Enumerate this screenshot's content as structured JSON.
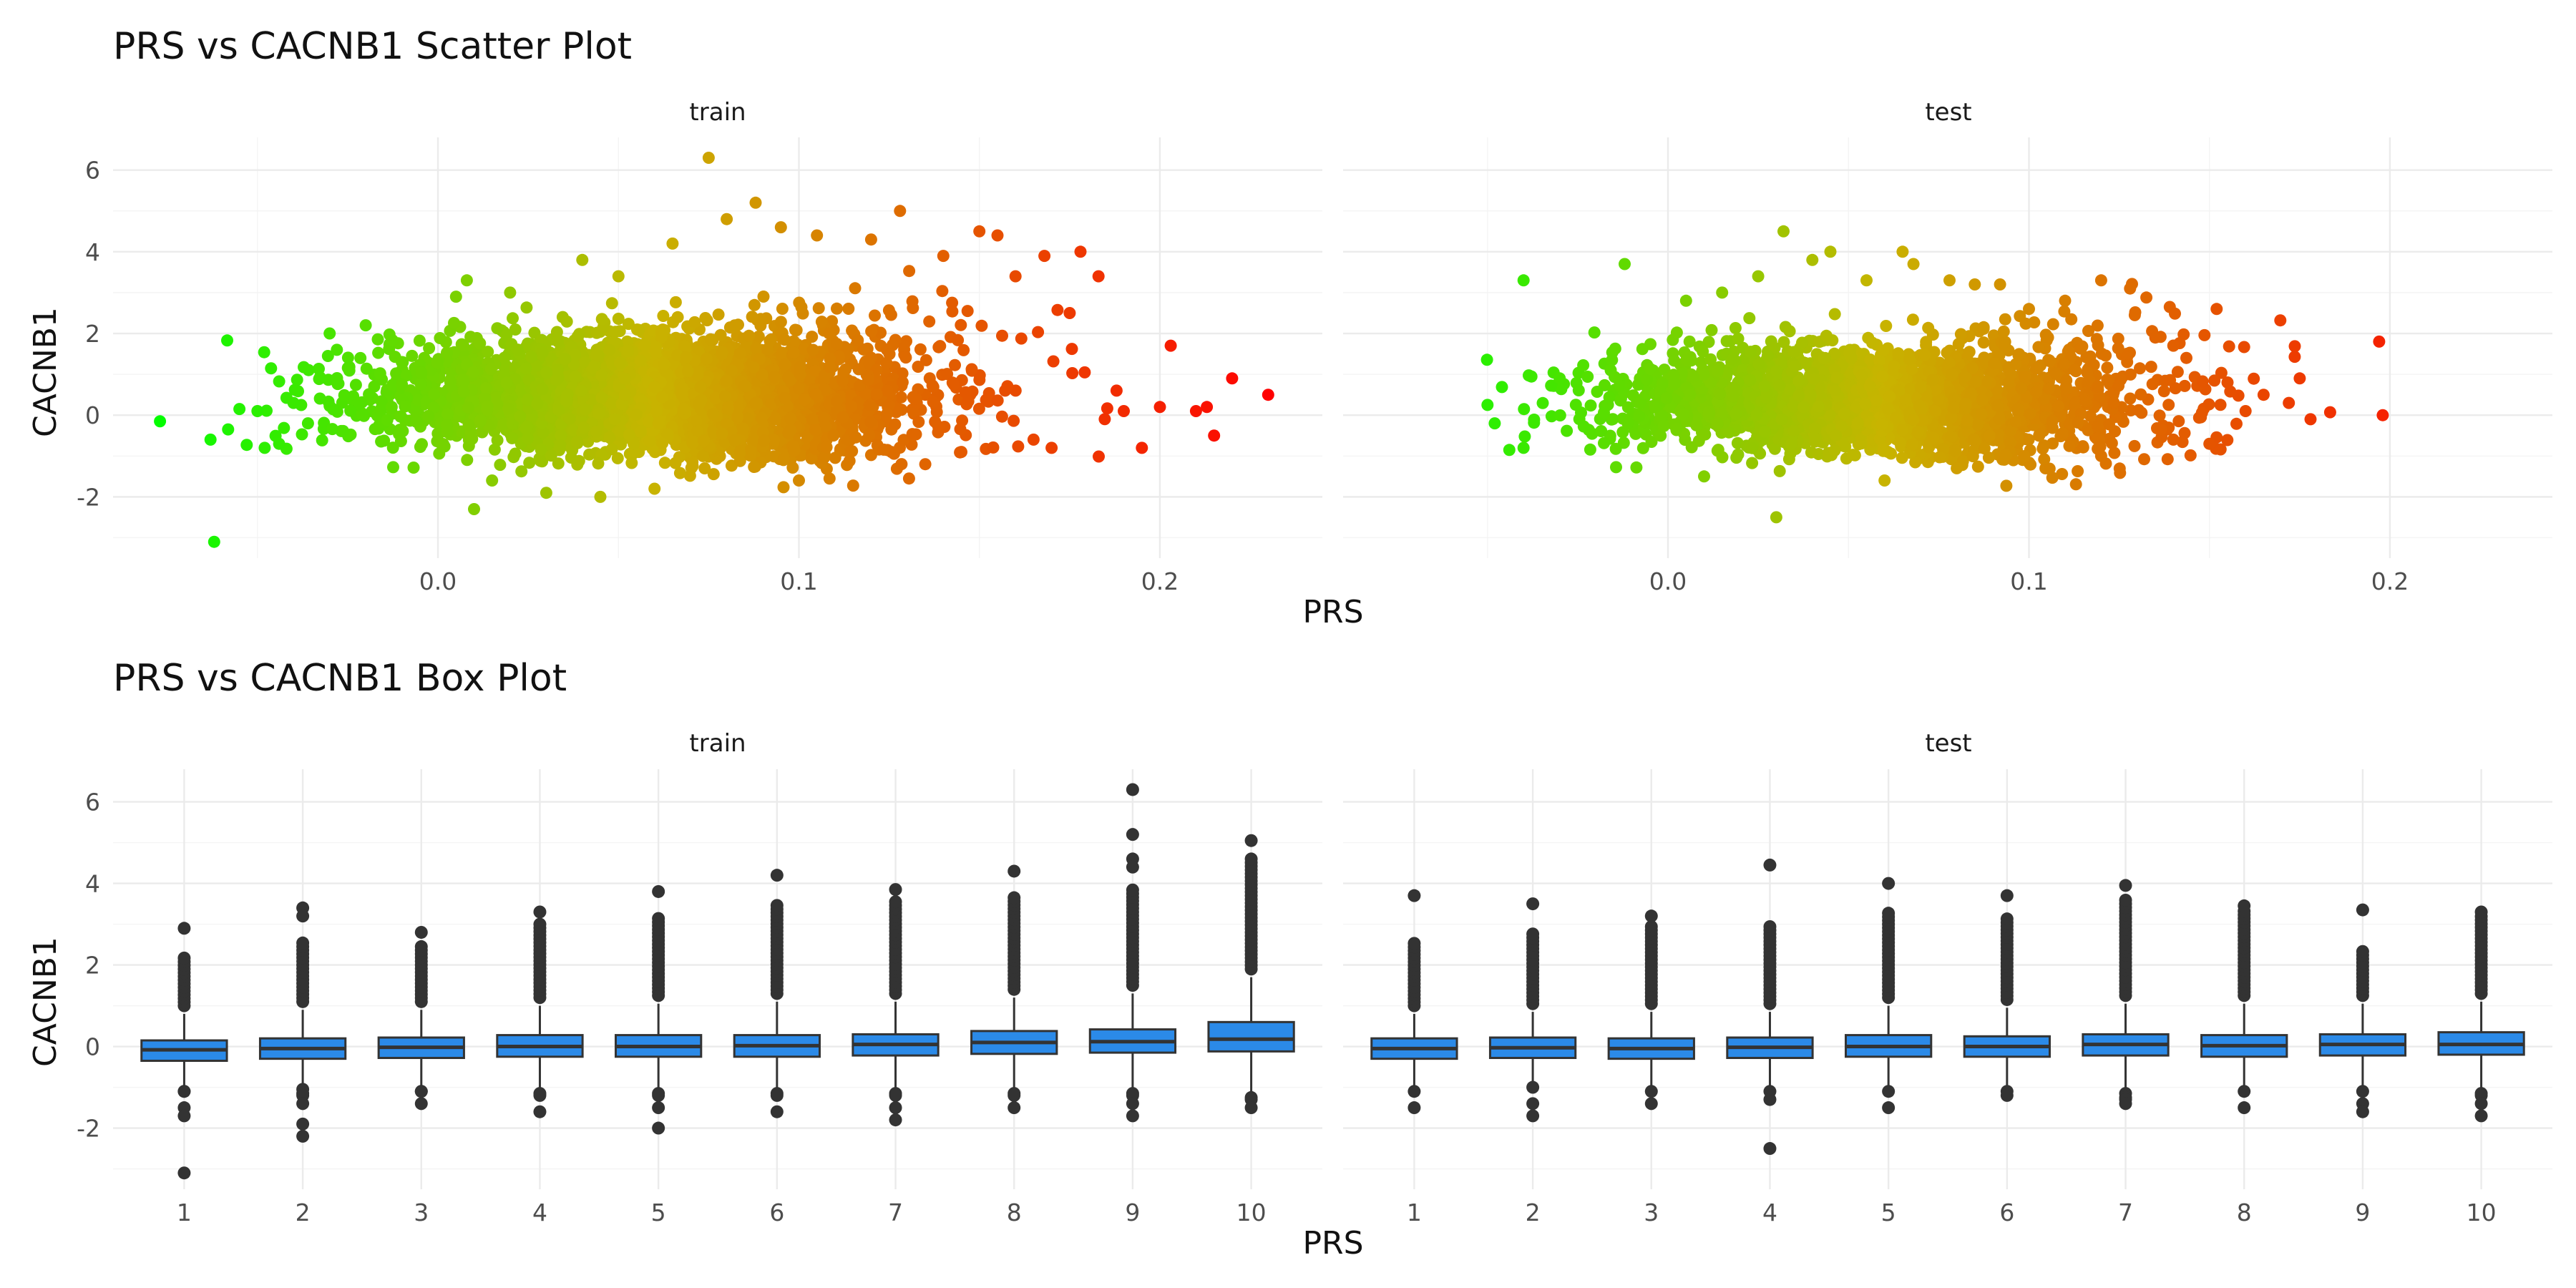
{
  "chart_data": [
    {
      "type": "scatter",
      "title": "PRS vs CACNB1 Scatter Plot",
      "xlabel": "PRS",
      "ylabel": "CACNB1",
      "xlim": [
        -0.09,
        0.245
      ],
      "ylim": [
        -3.5,
        6.8
      ],
      "x_ticks": [
        0.0,
        0.1,
        0.2
      ],
      "x_tick_labels": [
        "0.0",
        "0.1",
        "0.2"
      ],
      "y_ticks": [
        -2,
        0,
        2,
        4,
        6
      ],
      "y_tick_labels": [
        "-2",
        "0",
        "2",
        "4",
        "6"
      ],
      "grid": true,
      "color_scale": {
        "low": "#00ff00",
        "mid": "#c8b400",
        "high": "#ff0000"
      },
      "panels": [
        {
          "name": "train",
          "points": [
            [
              -0.077,
              -0.15
            ],
            [
              -0.063,
              -0.6
            ],
            [
              -0.062,
              -3.1
            ],
            [
              -0.055,
              0.15
            ],
            [
              -0.05,
              0.1
            ],
            [
              -0.048,
              -0.8
            ],
            [
              -0.044,
              -0.7
            ],
            [
              -0.04,
              0.3
            ],
            [
              -0.036,
              -0.2
            ],
            [
              -0.03,
              2.0
            ],
            [
              -0.028,
              1.6
            ],
            [
              -0.02,
              2.2
            ],
            [
              -0.01,
              1.3
            ],
            [
              0.005,
              2.9
            ],
            [
              0.008,
              3.3
            ],
            [
              0.015,
              -1.6
            ],
            [
              0.01,
              -2.3
            ],
            [
              0.02,
              3.0
            ],
            [
              0.03,
              -1.9
            ],
            [
              0.04,
              3.8
            ],
            [
              0.045,
              -2.0
            ],
            [
              0.05,
              3.4
            ],
            [
              0.06,
              -1.8
            ],
            [
              0.065,
              4.2
            ],
            [
              0.075,
              6.3
            ],
            [
              0.08,
              4.8
            ],
            [
              0.088,
              5.2
            ],
            [
              0.095,
              4.6
            ],
            [
              0.1,
              -1.6
            ],
            [
              0.105,
              4.4
            ],
            [
              0.12,
              4.3
            ],
            [
              0.128,
              5.0
            ],
            [
              0.14,
              3.9
            ],
            [
              0.15,
              4.5
            ],
            [
              0.155,
              4.4
            ],
            [
              0.16,
              3.4
            ],
            [
              0.168,
              3.9
            ],
            [
              0.178,
              4.0
            ],
            [
              0.183,
              3.4
            ],
            [
              0.175,
              2.5
            ],
            [
              0.17,
              -0.8
            ],
            [
              0.188,
              0.6
            ],
            [
              0.19,
              0.1
            ],
            [
              0.195,
              -0.8
            ],
            [
              0.2,
              0.2
            ],
            [
              0.203,
              1.7
            ],
            [
              0.21,
              0.1
            ],
            [
              0.213,
              0.2
            ],
            [
              0.215,
              -0.5
            ],
            [
              0.22,
              0.9
            ],
            [
              0.23,
              0.5
            ],
            [
              0.165,
              -0.6
            ],
            [
              0.135,
              -1.2
            ],
            [
              0.145,
              -0.9
            ]
          ],
          "cloud": {
            "x_mean": 0.06,
            "x_sd": 0.035,
            "y_mean": 0.25,
            "y_sd": 0.75,
            "n": 4200
          }
        },
        {
          "name": "test",
          "points": [
            [
              -0.05,
              0.25
            ],
            [
              -0.048,
              -0.2
            ],
            [
              -0.04,
              3.3
            ],
            [
              -0.04,
              -0.8
            ],
            [
              -0.03,
              0.9
            ],
            [
              -0.012,
              3.7
            ],
            [
              0.005,
              2.8
            ],
            [
              0.015,
              3.0
            ],
            [
              0.025,
              3.4
            ],
            [
              0.032,
              4.5
            ],
            [
              0.04,
              3.8
            ],
            [
              0.045,
              4.0
            ],
            [
              0.055,
              3.3
            ],
            [
              0.065,
              4.0
            ],
            [
              0.068,
              3.7
            ],
            [
              0.078,
              3.3
            ],
            [
              0.085,
              3.2
            ],
            [
              0.092,
              3.2
            ],
            [
              0.1,
              2.6
            ],
            [
              0.11,
              2.8
            ],
            [
              0.12,
              3.3
            ],
            [
              0.128,
              3.1
            ],
            [
              0.135,
              1.9
            ],
            [
              0.14,
              1.7
            ],
            [
              0.152,
              2.6
            ],
            [
              0.155,
              0.8
            ],
            [
              0.16,
              0.1
            ],
            [
              0.165,
              0.5
            ],
            [
              0.172,
              0.3
            ],
            [
              0.175,
              0.9
            ],
            [
              0.178,
              -0.1
            ],
            [
              0.197,
              1.8
            ],
            [
              0.198,
              0.0
            ],
            [
              0.03,
              -2.5
            ],
            [
              0.01,
              -1.5
            ],
            [
              0.06,
              -1.6
            ],
            [
              0.08,
              -1.3
            ],
            [
              0.12,
              -1.0
            ],
            [
              0.14,
              -0.6
            ],
            [
              0.15,
              -0.7
            ]
          ],
          "cloud": {
            "x_mean": 0.058,
            "x_sd": 0.035,
            "y_mean": 0.15,
            "y_sd": 0.7,
            "n": 2600
          }
        }
      ]
    },
    {
      "type": "box",
      "title": "PRS vs CACNB1 Box Plot",
      "xlabel": "PRS",
      "ylabel": "CACNB1",
      "categories": [
        "1",
        "2",
        "3",
        "4",
        "5",
        "6",
        "7",
        "8",
        "9",
        "10"
      ],
      "ylim": [
        -3.5,
        6.8
      ],
      "y_ticks": [
        -2,
        0,
        2,
        4,
        6
      ],
      "y_tick_labels": [
        "-2",
        "0",
        "2",
        "4",
        "6"
      ],
      "box_color": "#2b8ae8",
      "grid": true,
      "panels": [
        {
          "name": "train",
          "boxes": [
            {
              "q1": -0.35,
              "median": -0.08,
              "q3": 0.15,
              "lo": -0.95,
              "hi": 0.8,
              "outliers_hi": [
                2.9
              ],
              "outlier_top": 2.2,
              "outliers_lo": [
                -1.1,
                -1.5,
                -1.7,
                -3.1
              ]
            },
            {
              "q1": -0.3,
              "median": -0.05,
              "q3": 0.2,
              "lo": -0.9,
              "hi": 0.9,
              "outliers_hi": [
                3.4,
                3.2
              ],
              "outlier_top": 2.6,
              "outliers_lo": [
                -1.2,
                -1.4,
                -1.9,
                -2.2
              ]
            },
            {
              "q1": -0.28,
              "median": -0.02,
              "q3": 0.22,
              "lo": -0.95,
              "hi": 0.9,
              "outliers_hi": [
                2.8
              ],
              "outlier_top": 2.5,
              "outliers_lo": [
                -1.1,
                -1.4
              ]
            },
            {
              "q1": -0.25,
              "median": 0.0,
              "q3": 0.28,
              "lo": -1.0,
              "hi": 1.0,
              "outliers_hi": [
                3.3
              ],
              "outlier_top": 3.0,
              "outliers_lo": [
                -1.2,
                -1.6
              ]
            },
            {
              "q1": -0.25,
              "median": 0.0,
              "q3": 0.28,
              "lo": -1.0,
              "hi": 1.05,
              "outliers_hi": [
                3.8
              ],
              "outlier_top": 3.2,
              "outliers_lo": [
                -1.2,
                -1.5,
                -2.0
              ]
            },
            {
              "q1": -0.25,
              "median": 0.02,
              "q3": 0.28,
              "lo": -1.0,
              "hi": 1.1,
              "outliers_hi": [
                4.2
              ],
              "outlier_top": 3.5,
              "outliers_lo": [
                -1.2,
                -1.6
              ]
            },
            {
              "q1": -0.22,
              "median": 0.05,
              "q3": 0.3,
              "lo": -1.0,
              "hi": 1.1,
              "outliers_hi": [
                3.85
              ],
              "outlier_top": 3.6,
              "outliers_lo": [
                -1.2,
                -1.5,
                -1.8
              ]
            },
            {
              "q1": -0.18,
              "median": 0.1,
              "q3": 0.38,
              "lo": -1.0,
              "hi": 1.2,
              "outliers_hi": [
                4.3
              ],
              "outlier_top": 3.7,
              "outliers_lo": [
                -1.2,
                -1.5
              ]
            },
            {
              "q1": -0.15,
              "median": 0.12,
              "q3": 0.42,
              "lo": -1.0,
              "hi": 1.3,
              "outliers_hi": [
                6.3,
                5.2,
                4.6,
                4.4
              ],
              "outlier_top": 3.9,
              "outliers_lo": [
                -1.2,
                -1.4,
                -1.7
              ]
            },
            {
              "q1": -0.12,
              "median": 0.18,
              "q3": 0.6,
              "lo": -1.1,
              "hi": 1.7,
              "outliers_hi": [
                5.05
              ],
              "outlier_top": 4.6,
              "outliers_lo": [
                -1.3,
                -1.5
              ]
            }
          ]
        },
        {
          "name": "test",
          "boxes": [
            {
              "q1": -0.3,
              "median": -0.05,
              "q3": 0.2,
              "lo": -1.0,
              "hi": 0.8,
              "outliers_hi": [
                3.7
              ],
              "outlier_top": 2.6,
              "outliers_lo": [
                -1.1,
                -1.5
              ]
            },
            {
              "q1": -0.28,
              "median": -0.03,
              "q3": 0.22,
              "lo": -1.0,
              "hi": 0.85,
              "outliers_hi": [
                3.5
              ],
              "outlier_top": 2.8,
              "outliers_lo": [
                -1.0,
                -1.4,
                -1.7
              ]
            },
            {
              "q1": -0.3,
              "median": -0.05,
              "q3": 0.2,
              "lo": -1.0,
              "hi": 0.85,
              "outliers_hi": [
                3.2
              ],
              "outlier_top": 3.0,
              "outliers_lo": [
                -1.1,
                -1.4
              ]
            },
            {
              "q1": -0.28,
              "median": -0.02,
              "q3": 0.22,
              "lo": -1.0,
              "hi": 0.85,
              "outliers_hi": [
                4.45
              ],
              "outlier_top": 3.0,
              "outliers_lo": [
                -1.1,
                -1.3,
                -2.5
              ]
            },
            {
              "q1": -0.25,
              "median": 0.0,
              "q3": 0.28,
              "lo": -1.0,
              "hi": 1.0,
              "outliers_hi": [
                4.0
              ],
              "outlier_top": 3.3,
              "outliers_lo": [
                -1.1,
                -1.5
              ]
            },
            {
              "q1": -0.25,
              "median": 0.0,
              "q3": 0.25,
              "lo": -1.0,
              "hi": 0.95,
              "outliers_hi": [
                3.7
              ],
              "outlier_top": 3.2,
              "outliers_lo": [
                -1.1,
                -1.2
              ]
            },
            {
              "q1": -0.22,
              "median": 0.05,
              "q3": 0.3,
              "lo": -1.0,
              "hi": 1.05,
              "outliers_hi": [
                3.95
              ],
              "outlier_top": 3.6,
              "outliers_lo": [
                -1.3,
                -1.4
              ]
            },
            {
              "q1": -0.25,
              "median": 0.02,
              "q3": 0.28,
              "lo": -1.0,
              "hi": 1.05,
              "outliers_hi": [
                3.45
              ],
              "outlier_top": 3.4,
              "outliers_lo": [
                -1.1,
                -1.5
              ]
            },
            {
              "q1": -0.22,
              "median": 0.05,
              "q3": 0.3,
              "lo": -1.0,
              "hi": 1.05,
              "outliers_hi": [
                3.35
              ],
              "outlier_top": 2.4,
              "outliers_lo": [
                -1.1,
                -1.4,
                -1.6
              ]
            },
            {
              "q1": -0.2,
              "median": 0.05,
              "q3": 0.35,
              "lo": -1.0,
              "hi": 1.1,
              "outliers_hi": [
                3.3
              ],
              "outlier_top": 3.2,
              "outliers_lo": [
                -1.2,
                -1.4,
                -1.7
              ]
            }
          ]
        }
      ]
    }
  ]
}
